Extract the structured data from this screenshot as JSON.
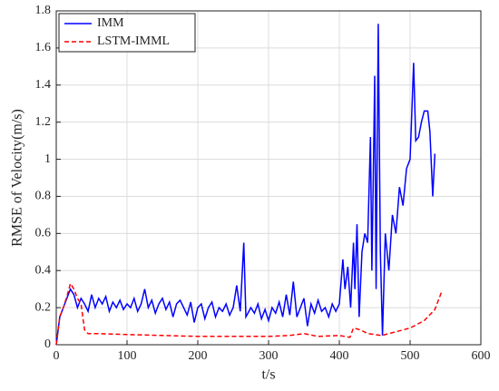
{
  "chart_data": {
    "type": "line",
    "x_label": "t/s",
    "y_label": "RMSE of Velocity(m/s)",
    "xlim": [
      0,
      600
    ],
    "xticks": [
      0,
      100,
      200,
      300,
      400,
      500,
      600
    ],
    "ylim": [
      0,
      1.8
    ],
    "yticks": [
      0,
      0.2,
      0.4,
      0.6,
      0.8,
      1,
      1.2,
      1.4,
      1.6,
      1.8
    ],
    "grid": true,
    "legend": "upper-left",
    "series": [
      {
        "name": "IMM",
        "color": "#0000ff",
        "dash": "solid",
        "x": [
          0,
          5,
          10,
          15,
          20,
          25,
          30,
          35,
          40,
          45,
          50,
          55,
          60,
          65,
          70,
          75,
          80,
          85,
          90,
          95,
          100,
          105,
          110,
          115,
          120,
          125,
          130,
          135,
          140,
          145,
          150,
          155,
          160,
          165,
          170,
          175,
          180,
          185,
          190,
          195,
          200,
          205,
          210,
          215,
          220,
          225,
          230,
          235,
          240,
          245,
          250,
          255,
          260,
          265,
          268,
          275,
          280,
          285,
          290,
          295,
          300,
          305,
          310,
          315,
          320,
          325,
          330,
          335,
          340,
          345,
          350,
          355,
          360,
          365,
          370,
          375,
          380,
          385,
          390,
          395,
          400,
          405,
          408,
          412,
          416,
          420,
          422,
          425,
          428,
          432,
          436,
          440,
          444,
          446,
          448,
          450,
          452,
          455,
          458,
          461,
          465,
          470,
          475,
          480,
          485,
          490,
          495,
          500,
          505,
          508,
          512,
          516,
          520,
          525,
          528,
          532,
          535
        ],
        "values": [
          0,
          0.15,
          0.2,
          0.25,
          0.3,
          0.27,
          0.2,
          0.25,
          0.22,
          0.18,
          0.27,
          0.2,
          0.25,
          0.22,
          0.26,
          0.18,
          0.23,
          0.2,
          0.24,
          0.19,
          0.22,
          0.2,
          0.25,
          0.18,
          0.22,
          0.3,
          0.2,
          0.24,
          0.17,
          0.22,
          0.25,
          0.19,
          0.23,
          0.15,
          0.22,
          0.24,
          0.2,
          0.16,
          0.23,
          0.12,
          0.2,
          0.22,
          0.14,
          0.2,
          0.23,
          0.15,
          0.2,
          0.18,
          0.22,
          0.16,
          0.2,
          0.32,
          0.18,
          0.55,
          0.15,
          0.2,
          0.17,
          0.22,
          0.14,
          0.19,
          0.13,
          0.2,
          0.17,
          0.23,
          0.15,
          0.27,
          0.16,
          0.34,
          0.15,
          0.2,
          0.25,
          0.1,
          0.22,
          0.17,
          0.24,
          0.18,
          0.2,
          0.15,
          0.22,
          0.18,
          0.22,
          0.46,
          0.3,
          0.42,
          0.2,
          0.55,
          0.3,
          0.65,
          0.15,
          0.5,
          0.6,
          0.55,
          1.12,
          0.4,
          0.9,
          1.45,
          0.3,
          1.73,
          0.5,
          0.05,
          0.6,
          0.4,
          0.7,
          0.6,
          0.85,
          0.75,
          0.95,
          1.0,
          1.52,
          1.1,
          1.12,
          1.2,
          1.26,
          1.26,
          1.15,
          0.8,
          1.03
        ]
      },
      {
        "name": "LSTM-IMML",
        "color": "#ff0000",
        "dash": "dashed",
        "x": [
          0,
          5,
          10,
          15,
          20,
          25,
          30,
          35,
          40,
          45,
          60,
          100,
          150,
          200,
          250,
          300,
          330,
          350,
          370,
          400,
          415,
          420,
          430,
          440,
          460,
          480,
          500,
          520,
          535,
          545
        ],
        "values": [
          0,
          0.15,
          0.2,
          0.26,
          0.33,
          0.3,
          0.25,
          0.22,
          0.08,
          0.06,
          0.06,
          0.055,
          0.05,
          0.045,
          0.045,
          0.045,
          0.05,
          0.06,
          0.045,
          0.05,
          0.04,
          0.09,
          0.08,
          0.06,
          0.05,
          0.07,
          0.09,
          0.13,
          0.19,
          0.29
        ]
      }
    ]
  }
}
